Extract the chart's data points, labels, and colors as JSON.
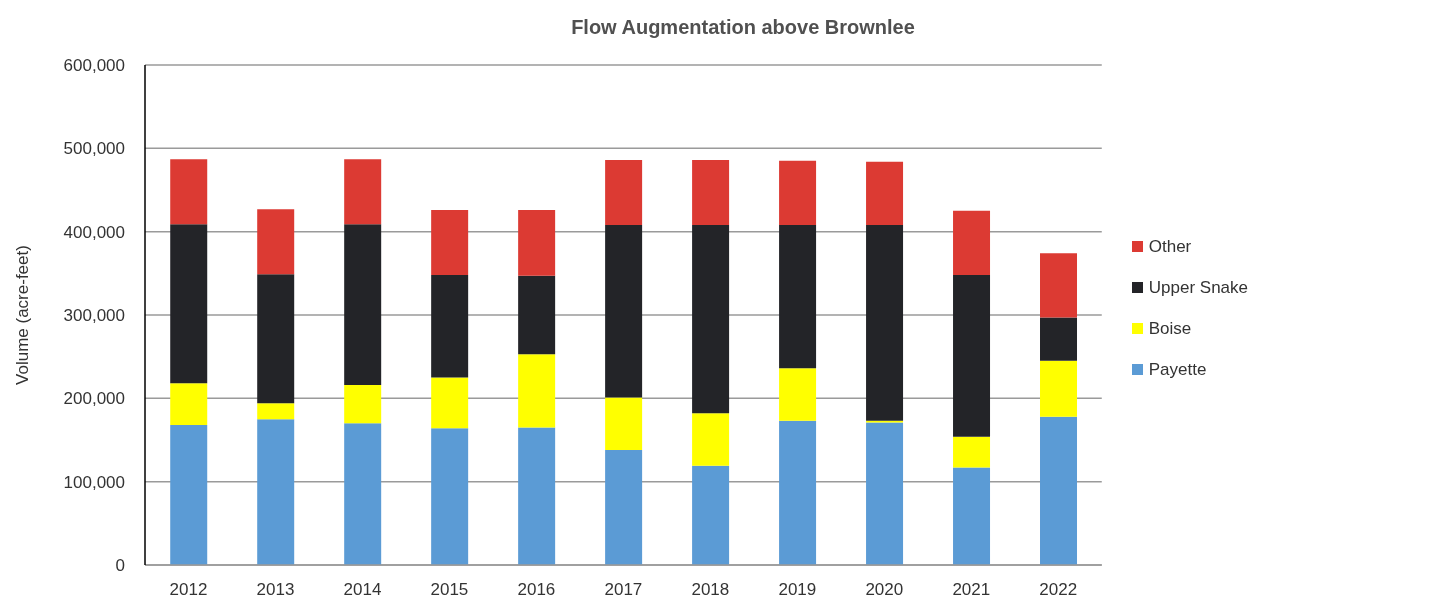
{
  "chart_data": {
    "type": "bar",
    "title": "Flow Augmentation above Brownlee",
    "ylabel": "Volume (acre-feet)",
    "categories": [
      "2012",
      "2013",
      "2014",
      "2015",
      "2016",
      "2017",
      "2018",
      "2019",
      "2020",
      "2021",
      "2022"
    ],
    "series": [
      {
        "name": "Payette",
        "color": "#5b9bd5",
        "values": [
          168000,
          175000,
          170000,
          164000,
          165000,
          138000,
          119000,
          173000,
          171000,
          117000,
          178000
        ]
      },
      {
        "name": "Boise",
        "color": "#ffff00",
        "values": [
          50000,
          19000,
          46000,
          61000,
          88000,
          63000,
          63000,
          63000,
          2000,
          37000,
          67000
        ]
      },
      {
        "name": "Upper Snake",
        "color": "#232428",
        "values": [
          191000,
          155000,
          193000,
          123000,
          94000,
          207000,
          226000,
          172000,
          235000,
          194000,
          52000
        ]
      },
      {
        "name": "Other",
        "color": "#dc3a33",
        "values": [
          78000,
          78000,
          78000,
          78000,
          79000,
          78000,
          78000,
          77000,
          76000,
          77000,
          77000
        ]
      }
    ],
    "stacked": true,
    "ylim": [
      0,
      600000
    ],
    "yticks": [
      {
        "value": 0,
        "label": "0"
      },
      {
        "value": 100000,
        "label": "100,000"
      },
      {
        "value": 200000,
        "label": "200,000"
      },
      {
        "value": 300000,
        "label": "300,000"
      },
      {
        "value": 400000,
        "label": "400,000"
      },
      {
        "value": 500000,
        "label": "500,000"
      },
      {
        "value": 600000,
        "label": "600,000"
      }
    ],
    "grid": "y",
    "legend": "right"
  }
}
